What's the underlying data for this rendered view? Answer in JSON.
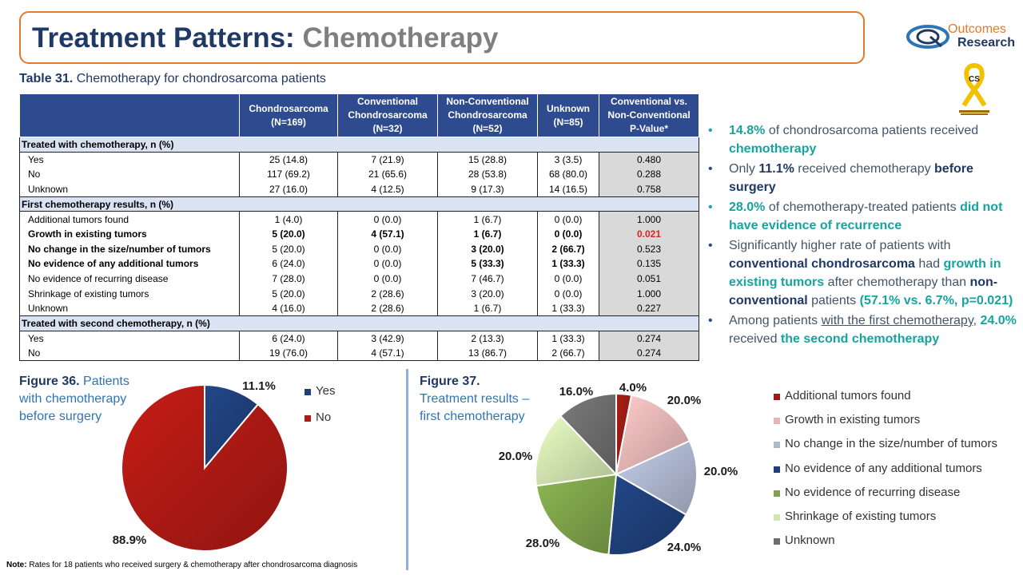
{
  "title": {
    "main": "Treatment Patterns:",
    "sub": "Chemotherapy"
  },
  "logo": {
    "line1": "Outcomes",
    "line2": "Research"
  },
  "ribbon": {
    "badge": "CS"
  },
  "table": {
    "caption_bold": "Table 31.",
    "caption_text": " Chemotherapy for chondrosarcoma patients",
    "headers": [
      "Chondrosarcoma\n(N=169)",
      "Conventional\nChondrosarcoma\n(N=32)",
      "Non-Conventional\nChondrosarcoma\n(N=52)",
      "Unknown\n(N=85)",
      "Conventional vs.\nNon-Conventional\nP-Value*"
    ],
    "sections": [
      {
        "label": "Treated with chemotherapy, n (%)",
        "rows": [
          {
            "label": "Yes",
            "values": [
              "25 (14.8)",
              "7 (21.9)",
              "15 (28.8)",
              "3 (3.5)",
              "0.480"
            ],
            "bold": false,
            "sig": false
          },
          {
            "label": "No",
            "values": [
              "117 (69.2)",
              "21 (65.6)",
              "28 (53.8)",
              "68 (80.0)",
              "0.288"
            ],
            "bold": false,
            "sig": false
          },
          {
            "label": "Unknown",
            "values": [
              "27 (16.0)",
              "4 (12.5)",
              "9 (17.3)",
              "14 (16.5)",
              "0.758"
            ],
            "bold": false,
            "sig": false
          }
        ]
      },
      {
        "label": "First chemotherapy results, n (%)",
        "rows": [
          {
            "label": "Additional tumors found",
            "values": [
              "1 (4.0)",
              "0 (0.0)",
              "1 (6.7)",
              "0 (0.0)",
              "1.000"
            ],
            "bold": false,
            "sig": false
          },
          {
            "label": "Growth in existing tumors",
            "values": [
              "5 (20.0)",
              "4 (57.1)",
              "1 (6.7)",
              "0 (0.0)",
              "0.021"
            ],
            "bold": true,
            "sig": true
          },
          {
            "label": "No change in the size/number of tumors",
            "values": [
              "5 (20.0)",
              "0 (0.0)",
              "3 (20.0)",
              "2 (66.7)",
              "0.523"
            ],
            "bold": false,
            "sig": false,
            "boldLabel": true,
            "boldCols": [
              2,
              3
            ]
          },
          {
            "label": "No evidence of any additional tumors",
            "values": [
              "6 (24.0)",
              "0 (0.0)",
              "5 (33.3)",
              "1 (33.3)",
              "0.135"
            ],
            "bold": false,
            "sig": false,
            "boldLabel": true,
            "boldCols": [
              2,
              3
            ]
          },
          {
            "label": "No evidence of recurring disease",
            "values": [
              "7 (28.0)",
              "0 (0.0)",
              "7 (46.7)",
              "0 (0.0)",
              "0.051"
            ],
            "bold": false,
            "sig": false
          },
          {
            "label": "Shrinkage of existing tumors",
            "values": [
              "5 (20.0)",
              "2 (28.6)",
              "3 (20.0)",
              "0 (0.0)",
              "1.000"
            ],
            "bold": false,
            "sig": false
          },
          {
            "label": "Unknown",
            "values": [
              "4 (16.0)",
              "2 (28.6)",
              "1 (6.7)",
              "1 (33.3)",
              "0.227"
            ],
            "bold": false,
            "sig": false
          }
        ]
      },
      {
        "label": "Treated with second chemotherapy, n (%)",
        "rows": [
          {
            "label": "Yes",
            "values": [
              "6 (24.0)",
              "3 (42.9)",
              "2 (13.3)",
              "1 (33.3)",
              "0.274"
            ],
            "bold": false,
            "sig": false
          },
          {
            "label": "No",
            "values": [
              "19 (76.0)",
              "4 (57.1)",
              "13 (86.7)",
              "2 (66.7)",
              "0.274"
            ],
            "bold": false,
            "sig": false
          }
        ]
      }
    ]
  },
  "bullets": [
    {
      "style": "teal",
      "parts": [
        [
          "tl",
          "14.8%"
        ],
        [
          "",
          " of chondrosarcoma patients received "
        ],
        [
          "tl",
          "chemotherapy"
        ]
      ]
    },
    {
      "style": "navy",
      "parts": [
        [
          "",
          "Only "
        ],
        [
          "nv",
          "11.1%"
        ],
        [
          "",
          " received chemotherapy "
        ],
        [
          "nv",
          "before surgery"
        ]
      ]
    },
    {
      "style": "teal",
      "parts": [
        [
          "tl",
          "28.0%"
        ],
        [
          "",
          " of chemotherapy-treated patients "
        ],
        [
          "tl",
          "did not have evidence of recurrence"
        ]
      ]
    },
    {
      "style": "navy",
      "parts": [
        [
          "",
          "Significantly higher rate of patients with "
        ],
        [
          "nv",
          "conventional chondrosarcoma"
        ],
        [
          "",
          " had "
        ],
        [
          "tl",
          "growth in existing tumors"
        ],
        [
          "",
          " after chemotherapy than "
        ],
        [
          "nv",
          "non-conventional"
        ],
        [
          "",
          " patients "
        ],
        [
          "tl",
          "(57.1% vs. 6.7%, p=0.021)"
        ]
      ]
    },
    {
      "style": "navy",
      "parts": [
        [
          "",
          "Among patients "
        ],
        [
          "ul",
          "with the first chemotherapy"
        ],
        [
          "",
          ", "
        ],
        [
          "tl",
          "24.0%"
        ],
        [
          "",
          " received "
        ],
        [
          "tl",
          "the second chemotherapy"
        ]
      ]
    }
  ],
  "figure36": {
    "bold": "Figure 36.",
    "text": " Patients with chemotherapy before surgery"
  },
  "figure37": {
    "bold": "Figure 37.",
    "text": "Treatment results – first chemotherapy"
  },
  "chart_data": [
    {
      "type": "pie",
      "title": "Patients with chemotherapy before surgery",
      "categories": [
        "Yes",
        "No"
      ],
      "values": [
        11.1,
        88.9
      ],
      "labels": [
        "11.1%",
        "88.9%"
      ],
      "colors": [
        "#1f3f7a",
        "#b01a14"
      ],
      "legend": "right"
    },
    {
      "type": "pie",
      "title": "Treatment results – first chemotherapy",
      "categories": [
        "Additional tumors found",
        "Growth in existing tumors",
        "No change in the size/number of tumors",
        "No evidence of any additional tumors",
        "No evidence of recurring disease",
        "Shrinkage of existing tumors",
        "Unknown"
      ],
      "values": [
        4.0,
        20.0,
        20.0,
        24.0,
        28.0,
        20.0,
        16.0
      ],
      "labels": [
        "4.0%",
        "20.0%",
        "20.0%",
        "24.0%",
        "28.0%",
        "20.0%",
        "16.0%"
      ],
      "colors": [
        "#9a1c14",
        "#e8b6b6",
        "#aeb8d0",
        "#1f3f7a",
        "#7ea34a",
        "#d2e6b0",
        "#6e6e6e"
      ],
      "legend": "right"
    }
  ],
  "note": {
    "bold": "Note:",
    "text": " Rates for 18 patients who received surgery & chemotherapy after chondrosarcoma diagnosis"
  }
}
